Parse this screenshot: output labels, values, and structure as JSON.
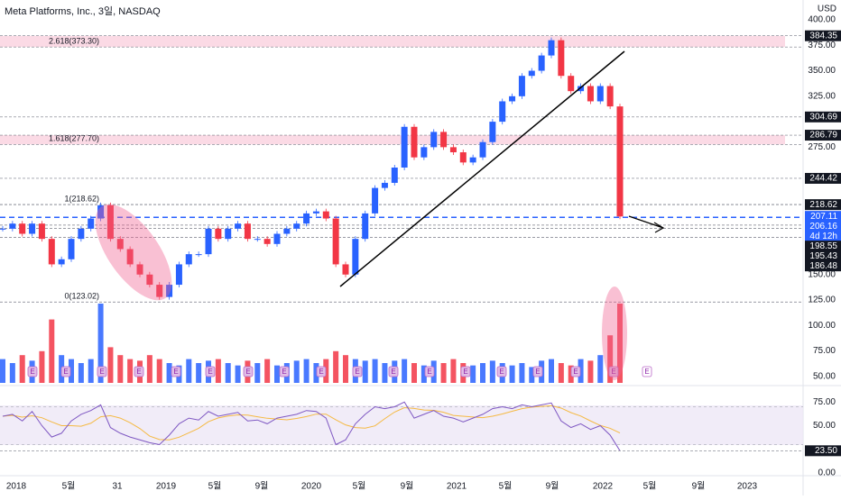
{
  "header": {
    "title": "Meta Platforms, Inc., 3일, NASDAQ",
    "currency": "USD"
  },
  "price_axis": [
    {
      "value": 400,
      "label": "400.00"
    },
    {
      "value": 375,
      "label": "375.00"
    },
    {
      "value": 350,
      "label": "350.00"
    },
    {
      "value": 325,
      "label": "325.00"
    },
    {
      "value": 275,
      "label": "275.00"
    },
    {
      "value": 150,
      "label": "150.00"
    },
    {
      "value": 125,
      "label": "125.00"
    },
    {
      "value": 100,
      "label": "100.00"
    },
    {
      "value": 75,
      "label": "75.00"
    },
    {
      "value": 50,
      "label": "50.00"
    }
  ],
  "level_labels": [
    {
      "value": 384.35,
      "label": "384.35",
      "color": "#131722"
    },
    {
      "value": 304.69,
      "label": "304.69",
      "color": "#131722"
    },
    {
      "value": 286.79,
      "label": "286.79",
      "color": "#131722"
    },
    {
      "value": 244.42,
      "label": "244.42",
      "color": "#131722"
    },
    {
      "value": 218.62,
      "label": "218.62",
      "color": "#131722"
    },
    {
      "value": 207.11,
      "label": "207.11",
      "color": "#2962ff"
    },
    {
      "value": 206.16,
      "label": "206.16",
      "color": "#2962ff"
    },
    {
      "value": 198.55,
      "label": "198.55",
      "color": "#131722"
    },
    {
      "value": 195.43,
      "label": "195.43",
      "color": "#131722"
    },
    {
      "value": 186.48,
      "label": "186.48",
      "color": "#131722"
    }
  ],
  "countdown": "4d 12h",
  "fib_levels": [
    {
      "label": "2.618(373.30)",
      "value": 373.3,
      "band_to": 384.35
    },
    {
      "label": "1.618(277.70)",
      "value": 277.7,
      "band_to": 286.79
    },
    {
      "label": "1(218.62)",
      "value": 218.62
    },
    {
      "label": "0(123.02)",
      "value": 123.02
    }
  ],
  "rsi_axis": [
    {
      "value": 75,
      "label": "75.00"
    },
    {
      "value": 50,
      "label": "50.00"
    },
    {
      "value": 0,
      "label": "0.00"
    }
  ],
  "rsi_last": {
    "value": 23.5,
    "label": "23.50"
  },
  "x_axis": [
    "2018",
    "5월",
    "31",
    "2019",
    "5월",
    "9월",
    "2020",
    "5월",
    "9월",
    "2021",
    "5월",
    "9월",
    "2022",
    "5월",
    "9월",
    "2023"
  ],
  "earnings": "E",
  "price_closes": [
    195,
    200,
    190,
    200,
    185,
    160,
    165,
    185,
    195,
    205,
    218,
    185,
    175,
    160,
    150,
    140,
    128,
    140,
    160,
    170,
    170,
    195,
    185,
    195,
    200,
    185,
    185,
    180,
    190,
    195,
    200,
    210,
    212,
    205,
    160,
    150,
    185,
    210,
    235,
    240,
    255,
    295,
    265,
    275,
    290,
    275,
    270,
    260,
    265,
    280,
    300,
    320,
    325,
    345,
    350,
    365,
    380,
    345,
    330,
    335,
    320,
    335,
    315,
    207
  ],
  "volume": [
    30,
    25,
    35,
    28,
    40,
    80,
    35,
    30,
    25,
    30,
    100,
    45,
    35,
    30,
    28,
    35,
    30,
    25,
    22,
    30,
    25,
    28,
    30,
    25,
    22,
    28,
    25,
    30,
    22,
    25,
    28,
    30,
    25,
    30,
    40,
    35,
    30,
    28,
    30,
    25,
    28,
    30,
    25,
    22,
    28,
    25,
    30,
    25,
    22,
    25,
    28,
    25,
    22,
    25,
    20,
    28,
    30,
    25,
    22,
    30,
    28,
    35,
    60,
    100
  ],
  "rsi": [
    60,
    62,
    55,
    65,
    50,
    38,
    42,
    55,
    62,
    66,
    72,
    48,
    42,
    38,
    35,
    32,
    30,
    40,
    52,
    58,
    56,
    65,
    60,
    62,
    64,
    55,
    56,
    52,
    58,
    60,
    62,
    66,
    65,
    58,
    30,
    35,
    52,
    62,
    70,
    68,
    70,
    75,
    58,
    62,
    66,
    60,
    58,
    54,
    58,
    62,
    68,
    70,
    68,
    72,
    70,
    72,
    74,
    55,
    48,
    52,
    46,
    50,
    40,
    23.5
  ]
}
